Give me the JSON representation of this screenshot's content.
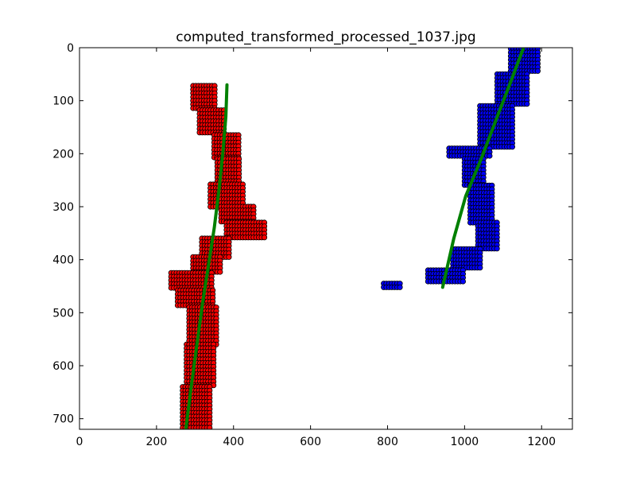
{
  "chart_data": {
    "type": "scatter",
    "title": "computed_transformed_processed_1037.jpg",
    "xlabel": "",
    "ylabel": "",
    "xlim": [
      0,
      1280
    ],
    "ylim": [
      720,
      0
    ],
    "y_axis_inverted": true,
    "grid": false,
    "legend": "none",
    "x_ticks": [
      0,
      200,
      400,
      600,
      800,
      1000,
      1200
    ],
    "y_ticks": [
      0,
      100,
      200,
      300,
      400,
      500,
      600,
      700
    ],
    "colors": {
      "left_points": "#ff0000",
      "right_points": "#0000ff",
      "marker_edge": "#000000",
      "fit_line": "#008000"
    },
    "series": [
      {
        "kind": "scatter-blocks",
        "color_key": "left_points",
        "rows": [
          {
            "y0": 72,
            "y1": 118,
            "x0": 295,
            "x1": 352
          },
          {
            "y0": 118,
            "y1": 165,
            "x0": 312,
            "x1": 378
          },
          {
            "y0": 165,
            "y1": 210,
            "x0": 350,
            "x1": 418
          },
          {
            "y0": 210,
            "y1": 258,
            "x0": 358,
            "x1": 418
          },
          {
            "y0": 258,
            "y1": 300,
            "x0": 340,
            "x1": 425
          },
          {
            "y0": 300,
            "y1": 330,
            "x0": 368,
            "x1": 455
          },
          {
            "y0": 330,
            "y1": 360,
            "x0": 382,
            "x1": 482
          },
          {
            "y0": 360,
            "y1": 395,
            "x0": 318,
            "x1": 392
          },
          {
            "y0": 395,
            "y1": 425,
            "x0": 295,
            "x1": 370
          },
          {
            "y0": 425,
            "y1": 458,
            "x0": 238,
            "x1": 348
          },
          {
            "y0": 458,
            "y1": 490,
            "x0": 255,
            "x1": 350
          },
          {
            "y0": 490,
            "y1": 560,
            "x0": 285,
            "x1": 358
          },
          {
            "y0": 560,
            "y1": 640,
            "x0": 278,
            "x1": 350
          },
          {
            "y0": 640,
            "y1": 720,
            "x0": 268,
            "x1": 340
          }
        ]
      },
      {
        "kind": "scatter-blocks",
        "color_key": "right_points",
        "rows": [
          {
            "y0": 2,
            "y1": 50,
            "x0": 1120,
            "x1": 1190
          },
          {
            "y0": 50,
            "y1": 110,
            "x0": 1085,
            "x1": 1165
          },
          {
            "y0": 110,
            "y1": 190,
            "x0": 1040,
            "x1": 1125
          },
          {
            "y0": 190,
            "y1": 210,
            "x0": 960,
            "x1": 1070
          },
          {
            "y0": 210,
            "y1": 260,
            "x0": 1000,
            "x1": 1055
          },
          {
            "y0": 260,
            "y1": 330,
            "x0": 1015,
            "x1": 1075
          },
          {
            "y0": 330,
            "y1": 380,
            "x0": 1035,
            "x1": 1090
          },
          {
            "y0": 380,
            "y1": 420,
            "x0": 970,
            "x1": 1040
          },
          {
            "y0": 420,
            "y1": 445,
            "x0": 905,
            "x1": 1000
          },
          {
            "y0": 445,
            "y1": 452,
            "x0": 790,
            "x1": 835
          }
        ]
      },
      {
        "kind": "line",
        "color_key": "fit_line",
        "x": [
          276,
          290,
          305,
          320,
          335,
          350,
          362,
          372,
          380,
          383
        ],
        "y": [
          720,
          640,
          560,
          480,
          410,
          340,
          270,
          200,
          130,
          70
        ]
      },
      {
        "kind": "line",
        "color_key": "fit_line",
        "x": [
          943,
          972,
          1003,
          1043,
          1085,
          1122,
          1153
        ],
        "y": [
          452,
          360,
          280,
          210,
          130,
          60,
          0
        ]
      }
    ]
  }
}
